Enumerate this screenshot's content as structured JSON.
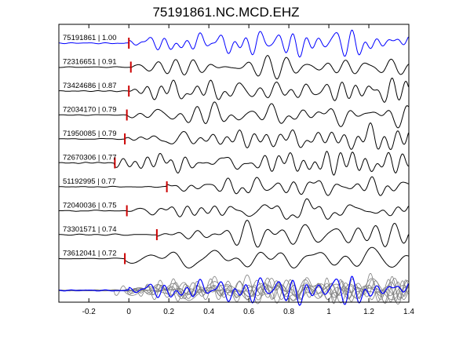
{
  "chart_data": {
    "type": "line",
    "title": "75191861.NC.MCD.EHZ",
    "xlabel": "",
    "ylabel": "",
    "xlim": [
      -0.35,
      1.4
    ],
    "xticks": [
      -0.2,
      0,
      0.2,
      0.4,
      0.6,
      0.8,
      1,
      1.2,
      1.4
    ],
    "xtick_labels": [
      "-0.2",
      "0",
      "0.2",
      "0.4",
      "0.6",
      "0.8",
      "1",
      "1.2",
      "1.4"
    ],
    "grid": false,
    "traces": [
      {
        "label": "75191861 | 1.00",
        "pick_time": 0.0,
        "color": "#0000ff",
        "seed": 1
      },
      {
        "label": "72316651 | 0.91",
        "pick_time": 0.01,
        "color": "#000000",
        "seed": 2
      },
      {
        "label": "73424686 | 0.87",
        "pick_time": 0.0,
        "color": "#000000",
        "seed": 3
      },
      {
        "label": "72034170 | 0.79",
        "pick_time": -0.01,
        "color": "#000000",
        "seed": 4
      },
      {
        "label": "71950085 | 0.79",
        "pick_time": -0.02,
        "color": "#000000",
        "seed": 5
      },
      {
        "label": "72670306 | 0.77",
        "pick_time": -0.07,
        "color": "#000000",
        "seed": 6
      },
      {
        "label": "51192995 | 0.77",
        "pick_time": 0.19,
        "color": "#000000",
        "seed": 7
      },
      {
        "label": "72040036 | 0.75",
        "pick_time": -0.01,
        "color": "#000000",
        "seed": 8
      },
      {
        "label": "73301571 | 0.74",
        "pick_time": 0.14,
        "color": "#000000",
        "seed": 9
      },
      {
        "label": "73612041 | 0.72",
        "pick_time": -0.02,
        "color": "#000000",
        "seed": 10
      }
    ],
    "pick_color": "#cc0000",
    "stack_colors": {
      "reference": "#0000ff",
      "others": "#808080"
    }
  }
}
